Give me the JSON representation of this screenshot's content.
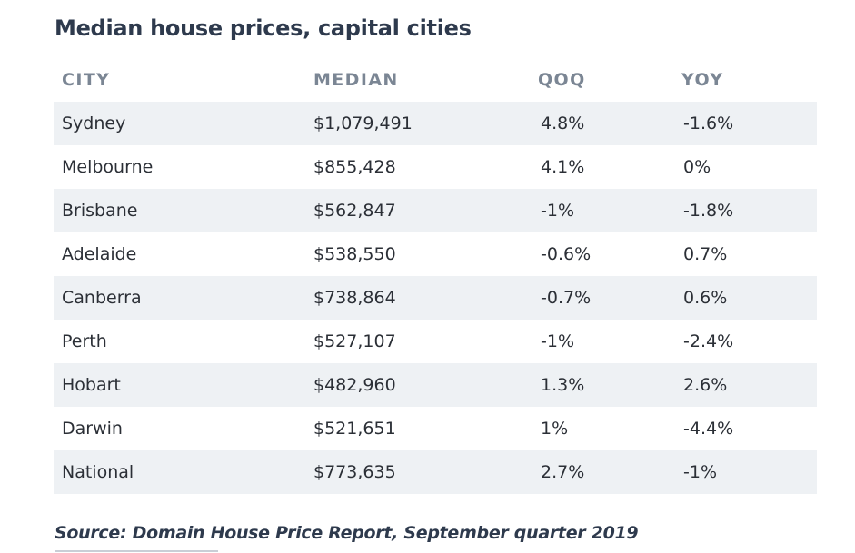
{
  "title": "Median house prices, capital cities",
  "source": "Source: Domain House Price Report, September quarter 2019",
  "chart_data": {
    "type": "table",
    "title": "Median house prices, capital cities",
    "columns": [
      "CITY",
      "MEDIAN",
      "QOQ",
      "YOY"
    ],
    "rows": [
      {
        "city": "Sydney",
        "median": "$1,079,491",
        "qoq": "4.8%",
        "yoy": "-1.6%"
      },
      {
        "city": "Melbourne",
        "median": "$855,428",
        "qoq": "4.1%",
        "yoy": "0%"
      },
      {
        "city": "Brisbane",
        "median": "$562,847",
        "qoq": "-1%",
        "yoy": "-1.8%"
      },
      {
        "city": "Adelaide",
        "median": "$538,550",
        "qoq": "-0.6%",
        "yoy": "0.7%"
      },
      {
        "city": "Canberra",
        "median": "$738,864",
        "qoq": "-0.7%",
        "yoy": "0.6%"
      },
      {
        "city": "Perth",
        "median": "$527,107",
        "qoq": "-1%",
        "yoy": "-2.4%"
      },
      {
        "city": "Hobart",
        "median": "$482,960",
        "qoq": "1.3%",
        "yoy": "2.6%"
      },
      {
        "city": "Darwin",
        "median": "$521,651",
        "qoq": "1%",
        "yoy": "-4.4%"
      },
      {
        "city": "National",
        "median": "$773,635",
        "qoq": "2.7%",
        "yoy": "-1%"
      }
    ],
    "source": "Source: Domain House Price Report, September quarter 2019"
  }
}
